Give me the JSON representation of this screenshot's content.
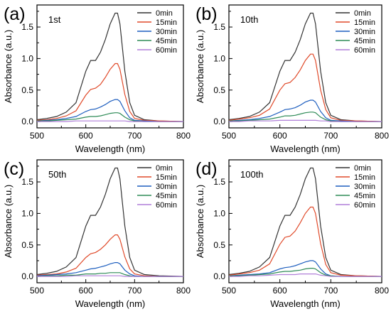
{
  "chart_data": [
    {
      "type": "line",
      "panel_label": "(a)",
      "run_label": "1st",
      "xlabel": "Wavelength (nm)",
      "ylabel": "Absorbance (a.u.)",
      "xlim": [
        500,
        800
      ],
      "ylim": [
        -0.1,
        1.85
      ],
      "xticks": [
        "500",
        "600",
        "700",
        "800"
      ],
      "yticks": [
        "0.0",
        "0.5",
        "1.0",
        "1.5"
      ],
      "x": [
        500,
        520,
        540,
        560,
        580,
        600,
        610,
        620,
        630,
        640,
        650,
        660,
        665,
        670,
        680,
        690,
        700,
        720,
        750,
        800
      ],
      "series": [
        {
          "name": "0min",
          "color": "#333333",
          "values": [
            0.03,
            0.05,
            0.08,
            0.15,
            0.3,
            0.8,
            0.97,
            0.97,
            1.1,
            1.3,
            1.55,
            1.72,
            1.72,
            1.55,
            0.8,
            0.3,
            0.1,
            0.03,
            0.01,
            0.0
          ]
        },
        {
          "name": "15min",
          "color": "#e04a2a",
          "values": [
            0.02,
            0.03,
            0.05,
            0.09,
            0.17,
            0.42,
            0.51,
            0.53,
            0.59,
            0.7,
            0.83,
            0.92,
            0.92,
            0.83,
            0.43,
            0.16,
            0.05,
            0.02,
            0.01,
            0.0
          ]
        },
        {
          "name": "30min",
          "color": "#1f5fbf",
          "values": [
            0.01,
            0.02,
            0.03,
            0.05,
            0.08,
            0.16,
            0.19,
            0.2,
            0.23,
            0.27,
            0.32,
            0.35,
            0.35,
            0.32,
            0.17,
            0.06,
            0.02,
            0.01,
            0.0,
            0.0
          ]
        },
        {
          "name": "45min",
          "color": "#2e8b57",
          "values": [
            0.01,
            0.01,
            0.02,
            0.03,
            0.04,
            0.07,
            0.08,
            0.08,
            0.09,
            0.11,
            0.13,
            0.14,
            0.14,
            0.13,
            0.07,
            0.03,
            0.01,
            0.0,
            0.0,
            0.0
          ]
        },
        {
          "name": "60min",
          "color": "#b07fd8",
          "values": [
            0.0,
            0.0,
            0.0,
            0.0,
            0.01,
            0.01,
            0.01,
            0.01,
            0.01,
            0.01,
            0.01,
            0.01,
            0.01,
            0.01,
            0.01,
            0.0,
            0.0,
            0.0,
            0.0,
            0.0
          ]
        }
      ]
    },
    {
      "type": "line",
      "panel_label": "(b)",
      "run_label": "10th",
      "xlabel": "Wavelength (nm)",
      "ylabel": "Absorbance (a.u.)",
      "xlim": [
        500,
        800
      ],
      "ylim": [
        -0.1,
        1.85
      ],
      "xticks": [
        "500",
        "600",
        "700",
        "800"
      ],
      "yticks": [
        "0.0",
        "0.5",
        "1.0",
        "1.5"
      ],
      "x": [
        500,
        520,
        540,
        560,
        580,
        600,
        610,
        620,
        630,
        640,
        650,
        660,
        665,
        670,
        680,
        690,
        700,
        720,
        750,
        800
      ],
      "series": [
        {
          "name": "0min",
          "color": "#333333",
          "values": [
            0.03,
            0.05,
            0.08,
            0.15,
            0.3,
            0.8,
            0.97,
            0.97,
            1.1,
            1.3,
            1.55,
            1.72,
            1.72,
            1.55,
            0.8,
            0.3,
            0.1,
            0.03,
            0.01,
            0.0
          ]
        },
        {
          "name": "15min",
          "color": "#e04a2a",
          "values": [
            0.02,
            0.04,
            0.06,
            0.1,
            0.2,
            0.5,
            0.6,
            0.62,
            0.7,
            0.82,
            0.97,
            1.07,
            1.07,
            0.97,
            0.5,
            0.19,
            0.06,
            0.02,
            0.01,
            0.0
          ]
        },
        {
          "name": "30min",
          "color": "#1f5fbf",
          "values": [
            0.01,
            0.02,
            0.03,
            0.05,
            0.08,
            0.15,
            0.19,
            0.2,
            0.22,
            0.26,
            0.31,
            0.34,
            0.34,
            0.31,
            0.16,
            0.06,
            0.02,
            0.01,
            0.0,
            0.0
          ]
        },
        {
          "name": "45min",
          "color": "#2e8b57",
          "values": [
            0.01,
            0.01,
            0.02,
            0.03,
            0.04,
            0.07,
            0.09,
            0.09,
            0.1,
            0.12,
            0.14,
            0.15,
            0.15,
            0.14,
            0.07,
            0.03,
            0.01,
            0.0,
            0.0,
            0.0
          ]
        },
        {
          "name": "60min",
          "color": "#b07fd8",
          "values": [
            0.0,
            0.0,
            0.01,
            0.01,
            0.01,
            0.02,
            0.02,
            0.02,
            0.02,
            0.02,
            0.02,
            0.02,
            0.02,
            0.02,
            0.01,
            0.01,
            0.0,
            0.0,
            0.0,
            0.0
          ]
        }
      ]
    },
    {
      "type": "line",
      "panel_label": "(c)",
      "run_label": "50th",
      "xlabel": "Wavelength (nm)",
      "ylabel": "Absorbance (a.u.)",
      "xlim": [
        500,
        800
      ],
      "ylim": [
        -0.1,
        1.85
      ],
      "xticks": [
        "500",
        "600",
        "700",
        "800"
      ],
      "yticks": [
        "0.0",
        "0.5",
        "1.0",
        "1.5"
      ],
      "x": [
        500,
        520,
        540,
        560,
        580,
        600,
        610,
        620,
        630,
        640,
        650,
        660,
        665,
        670,
        680,
        690,
        700,
        720,
        750,
        800
      ],
      "series": [
        {
          "name": "0min",
          "color": "#333333",
          "values": [
            0.03,
            0.05,
            0.08,
            0.15,
            0.3,
            0.8,
            0.97,
            0.97,
            1.1,
            1.3,
            1.55,
            1.72,
            1.72,
            1.55,
            0.8,
            0.3,
            0.1,
            0.03,
            0.01,
            0.0
          ]
        },
        {
          "name": "15min",
          "color": "#e04a2a",
          "values": [
            0.02,
            0.03,
            0.04,
            0.07,
            0.13,
            0.3,
            0.36,
            0.38,
            0.43,
            0.5,
            0.59,
            0.66,
            0.66,
            0.59,
            0.31,
            0.12,
            0.04,
            0.01,
            0.0,
            0.0
          ]
        },
        {
          "name": "30min",
          "color": "#1f5fbf",
          "values": [
            0.01,
            0.02,
            0.03,
            0.04,
            0.06,
            0.1,
            0.12,
            0.13,
            0.15,
            0.17,
            0.2,
            0.22,
            0.22,
            0.2,
            0.1,
            0.04,
            0.01,
            0.0,
            0.0,
            0.0
          ]
        },
        {
          "name": "45min",
          "color": "#2e8b57",
          "values": [
            0.0,
            0.01,
            0.01,
            0.02,
            0.02,
            0.04,
            0.04,
            0.04,
            0.05,
            0.05,
            0.06,
            0.06,
            0.06,
            0.06,
            0.03,
            0.01,
            0.0,
            0.0,
            0.0,
            0.0
          ]
        },
        {
          "name": "60min",
          "color": "#b07fd8",
          "values": [
            0.0,
            0.0,
            0.0,
            0.0,
            0.01,
            0.01,
            0.01,
            0.01,
            0.01,
            0.01,
            0.01,
            0.01,
            0.01,
            0.01,
            0.0,
            0.0,
            0.0,
            0.0,
            0.0,
            0.0
          ]
        }
      ]
    },
    {
      "type": "line",
      "panel_label": "(d)",
      "run_label": "100th",
      "xlabel": "Wavelength (nm)",
      "ylabel": "Absorbance (a.u.)",
      "xlim": [
        500,
        800
      ],
      "ylim": [
        -0.1,
        1.85
      ],
      "xticks": [
        "500",
        "600",
        "700",
        "800"
      ],
      "yticks": [
        "0.0",
        "0.5",
        "1.0",
        "1.5"
      ],
      "x": [
        500,
        520,
        540,
        560,
        580,
        600,
        610,
        620,
        630,
        640,
        650,
        660,
        665,
        670,
        680,
        690,
        700,
        720,
        750,
        800
      ],
      "series": [
        {
          "name": "0min",
          "color": "#333333",
          "values": [
            0.03,
            0.05,
            0.08,
            0.15,
            0.3,
            0.8,
            0.97,
            0.97,
            1.1,
            1.3,
            1.55,
            1.72,
            1.72,
            1.55,
            0.8,
            0.3,
            0.1,
            0.03,
            0.01,
            0.0
          ]
        },
        {
          "name": "15min",
          "color": "#e04a2a",
          "values": [
            0.02,
            0.04,
            0.06,
            0.1,
            0.2,
            0.51,
            0.62,
            0.64,
            0.72,
            0.85,
            1.0,
            1.1,
            1.1,
            1.0,
            0.52,
            0.19,
            0.06,
            0.02,
            0.01,
            0.0
          ]
        },
        {
          "name": "30min",
          "color": "#1f5fbf",
          "values": [
            0.01,
            0.02,
            0.03,
            0.04,
            0.06,
            0.12,
            0.14,
            0.15,
            0.17,
            0.2,
            0.23,
            0.25,
            0.25,
            0.23,
            0.12,
            0.04,
            0.01,
            0.0,
            0.0,
            0.0
          ]
        },
        {
          "name": "45min",
          "color": "#2e8b57",
          "values": [
            0.01,
            0.01,
            0.02,
            0.03,
            0.04,
            0.07,
            0.08,
            0.08,
            0.09,
            0.1,
            0.12,
            0.13,
            0.13,
            0.12,
            0.06,
            0.02,
            0.01,
            0.0,
            0.0,
            0.0
          ]
        },
        {
          "name": "60min",
          "color": "#b07fd8",
          "values": [
            0.0,
            0.0,
            0.01,
            0.01,
            0.02,
            0.03,
            0.03,
            0.03,
            0.03,
            0.04,
            0.04,
            0.04,
            0.04,
            0.04,
            0.02,
            0.01,
            0.0,
            0.0,
            0.0,
            0.0
          ]
        }
      ]
    }
  ]
}
